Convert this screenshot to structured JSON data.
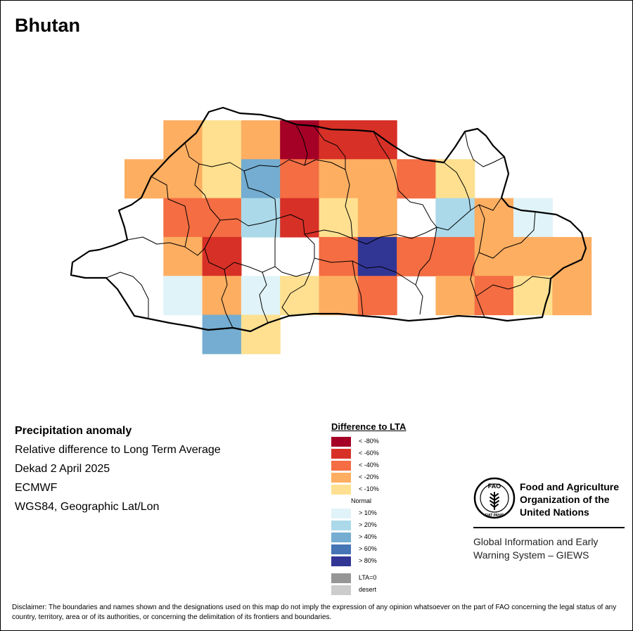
{
  "title": "Bhutan",
  "info": {
    "heading": "Precipitation anomaly",
    "lines": [
      "Relative difference to Long Term Average",
      "Dekad 2 April 2025",
      "ECMWF",
      "WGS84, Geographic Lat/Lon"
    ]
  },
  "legend": {
    "title": "Difference to LTA",
    "dry": [
      {
        "label": "< -80%",
        "color": "#a50026"
      },
      {
        "label": "< -60%",
        "color": "#d73027"
      },
      {
        "label": "< -40%",
        "color": "#f46d43"
      },
      {
        "label": "< -20%",
        "color": "#fdae61"
      },
      {
        "label": "< -10%",
        "color": "#fee090"
      }
    ],
    "normal_label": "Normal",
    "wet": [
      {
        "label": "> 10%",
        "color": "#e0f3f8"
      },
      {
        "label": "> 20%",
        "color": "#abd9e9"
      },
      {
        "label": "> 40%",
        "color": "#74add1"
      },
      {
        "label": "> 60%",
        "color": "#4575b4"
      },
      {
        "label": "> 80%",
        "color": "#313695"
      }
    ],
    "other": [
      {
        "label": "LTA=0",
        "color": "#969696"
      },
      {
        "label": "desert",
        "color": "#cccccc"
      }
    ]
  },
  "grid": {
    "columns": 12,
    "rows": 6,
    "classes": [
      [
        null,
        "< -20%",
        "< -10%",
        "< -20%",
        "< -80%",
        "< -60%",
        "< -60%",
        null,
        null,
        null,
        null,
        null
      ],
      [
        "< -20%",
        "< -20%",
        "< -10%",
        "> 40%",
        "< -40%",
        "< -20%",
        "< -20%",
        "< -40%",
        "< -10%",
        null,
        null,
        null
      ],
      [
        null,
        "< -40%",
        "< -40%",
        "> 20%",
        "< -60%",
        "< -10%",
        "< -20%",
        null,
        "> 20%",
        "< -20%",
        "> 10%",
        null
      ],
      [
        null,
        "< -20%",
        "< -60%",
        null,
        null,
        "< -40%",
        "> 80%",
        "< -40%",
        "< -40%",
        "< -20%",
        "< -20%",
        "< -20%"
      ],
      [
        null,
        "> 10%",
        "< -20%",
        "> 10%",
        "< -10%",
        "< -20%",
        "< -40%",
        null,
        "< -20%",
        "< -40%",
        "< -10%",
        "< -20%"
      ],
      [
        null,
        null,
        "> 40%",
        "< -10%",
        null,
        null,
        null,
        null,
        null,
        null,
        null,
        null
      ]
    ]
  },
  "logo": {
    "letters": "FAO",
    "motto": "FIAT PANIS",
    "name_lines": [
      "Food and Agriculture",
      "Organization of the",
      "United Nations"
    ],
    "giews_lines": [
      "Global Information and Early",
      "Warning System – GIEWS"
    ]
  },
  "disclaimer": "Disclaimer: The boundaries and names shown and the designations used on this map do not imply the expression of any opinion whatsoever on the part of FAO concerning the legal status of any country, territory, area or of its authorities, or concerning the delimitation of its frontiers and boundaries."
}
